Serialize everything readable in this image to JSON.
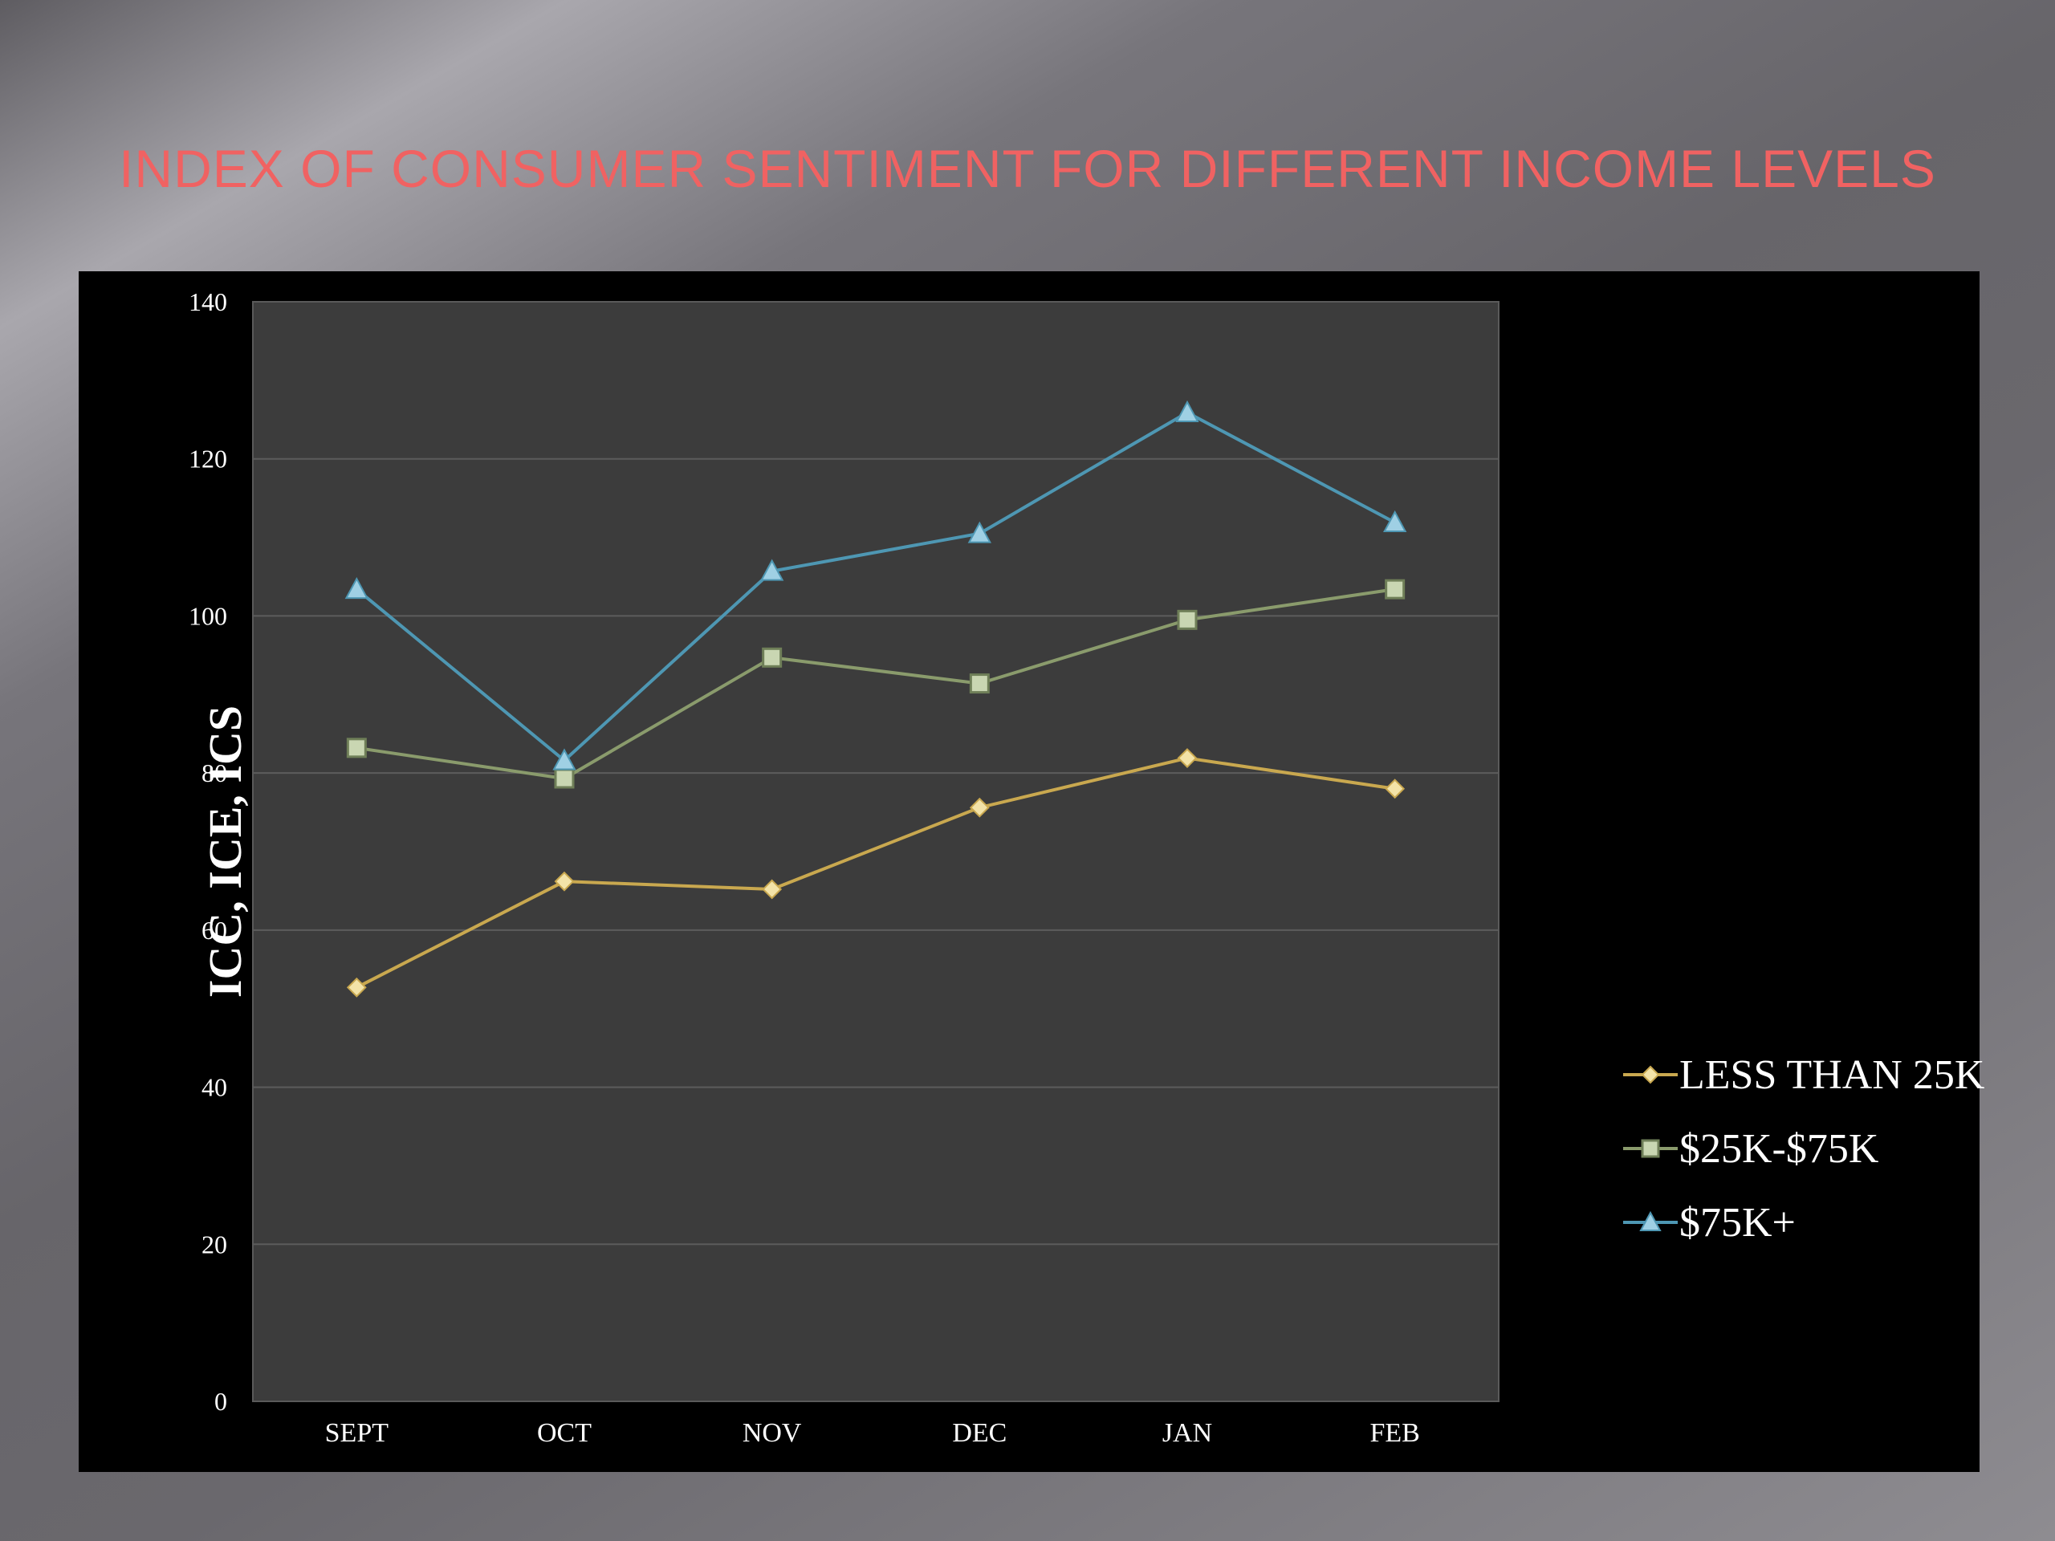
{
  "slide": {
    "title": "INDEX OF CONSUMER SENTIMENT FOR DIFFERENT INCOME LEVELS",
    "title_color": "#f06262"
  },
  "chart_data": {
    "type": "line",
    "title": "",
    "xlabel": "",
    "ylabel": "ICC, ICE, ICS",
    "categories": [
      "SEPT",
      "OCT",
      "NOV",
      "DEC",
      "JAN",
      "FEB"
    ],
    "ylim": [
      0,
      140
    ],
    "yticks": [
      0,
      20,
      40,
      60,
      80,
      100,
      120,
      140
    ],
    "grid": true,
    "legend_position": "right",
    "series": [
      {
        "name": "LESS THAN 25K",
        "values": [
          52.7,
          66.2,
          65.2,
          75.6,
          81.9,
          78.0
        ],
        "color": "#c9a84f",
        "marker": "diamond"
      },
      {
        "name": "$25K-$75K",
        "values": [
          83.2,
          79.3,
          94.7,
          91.4,
          99.5,
          103.4
        ],
        "color": "#8a9b6c",
        "marker": "square"
      },
      {
        "name": "$75K+",
        "values": [
          103.4,
          81.6,
          105.7,
          110.5,
          125.9,
          111.9
        ],
        "color": "#4e97b3",
        "marker": "triangle"
      }
    ]
  }
}
